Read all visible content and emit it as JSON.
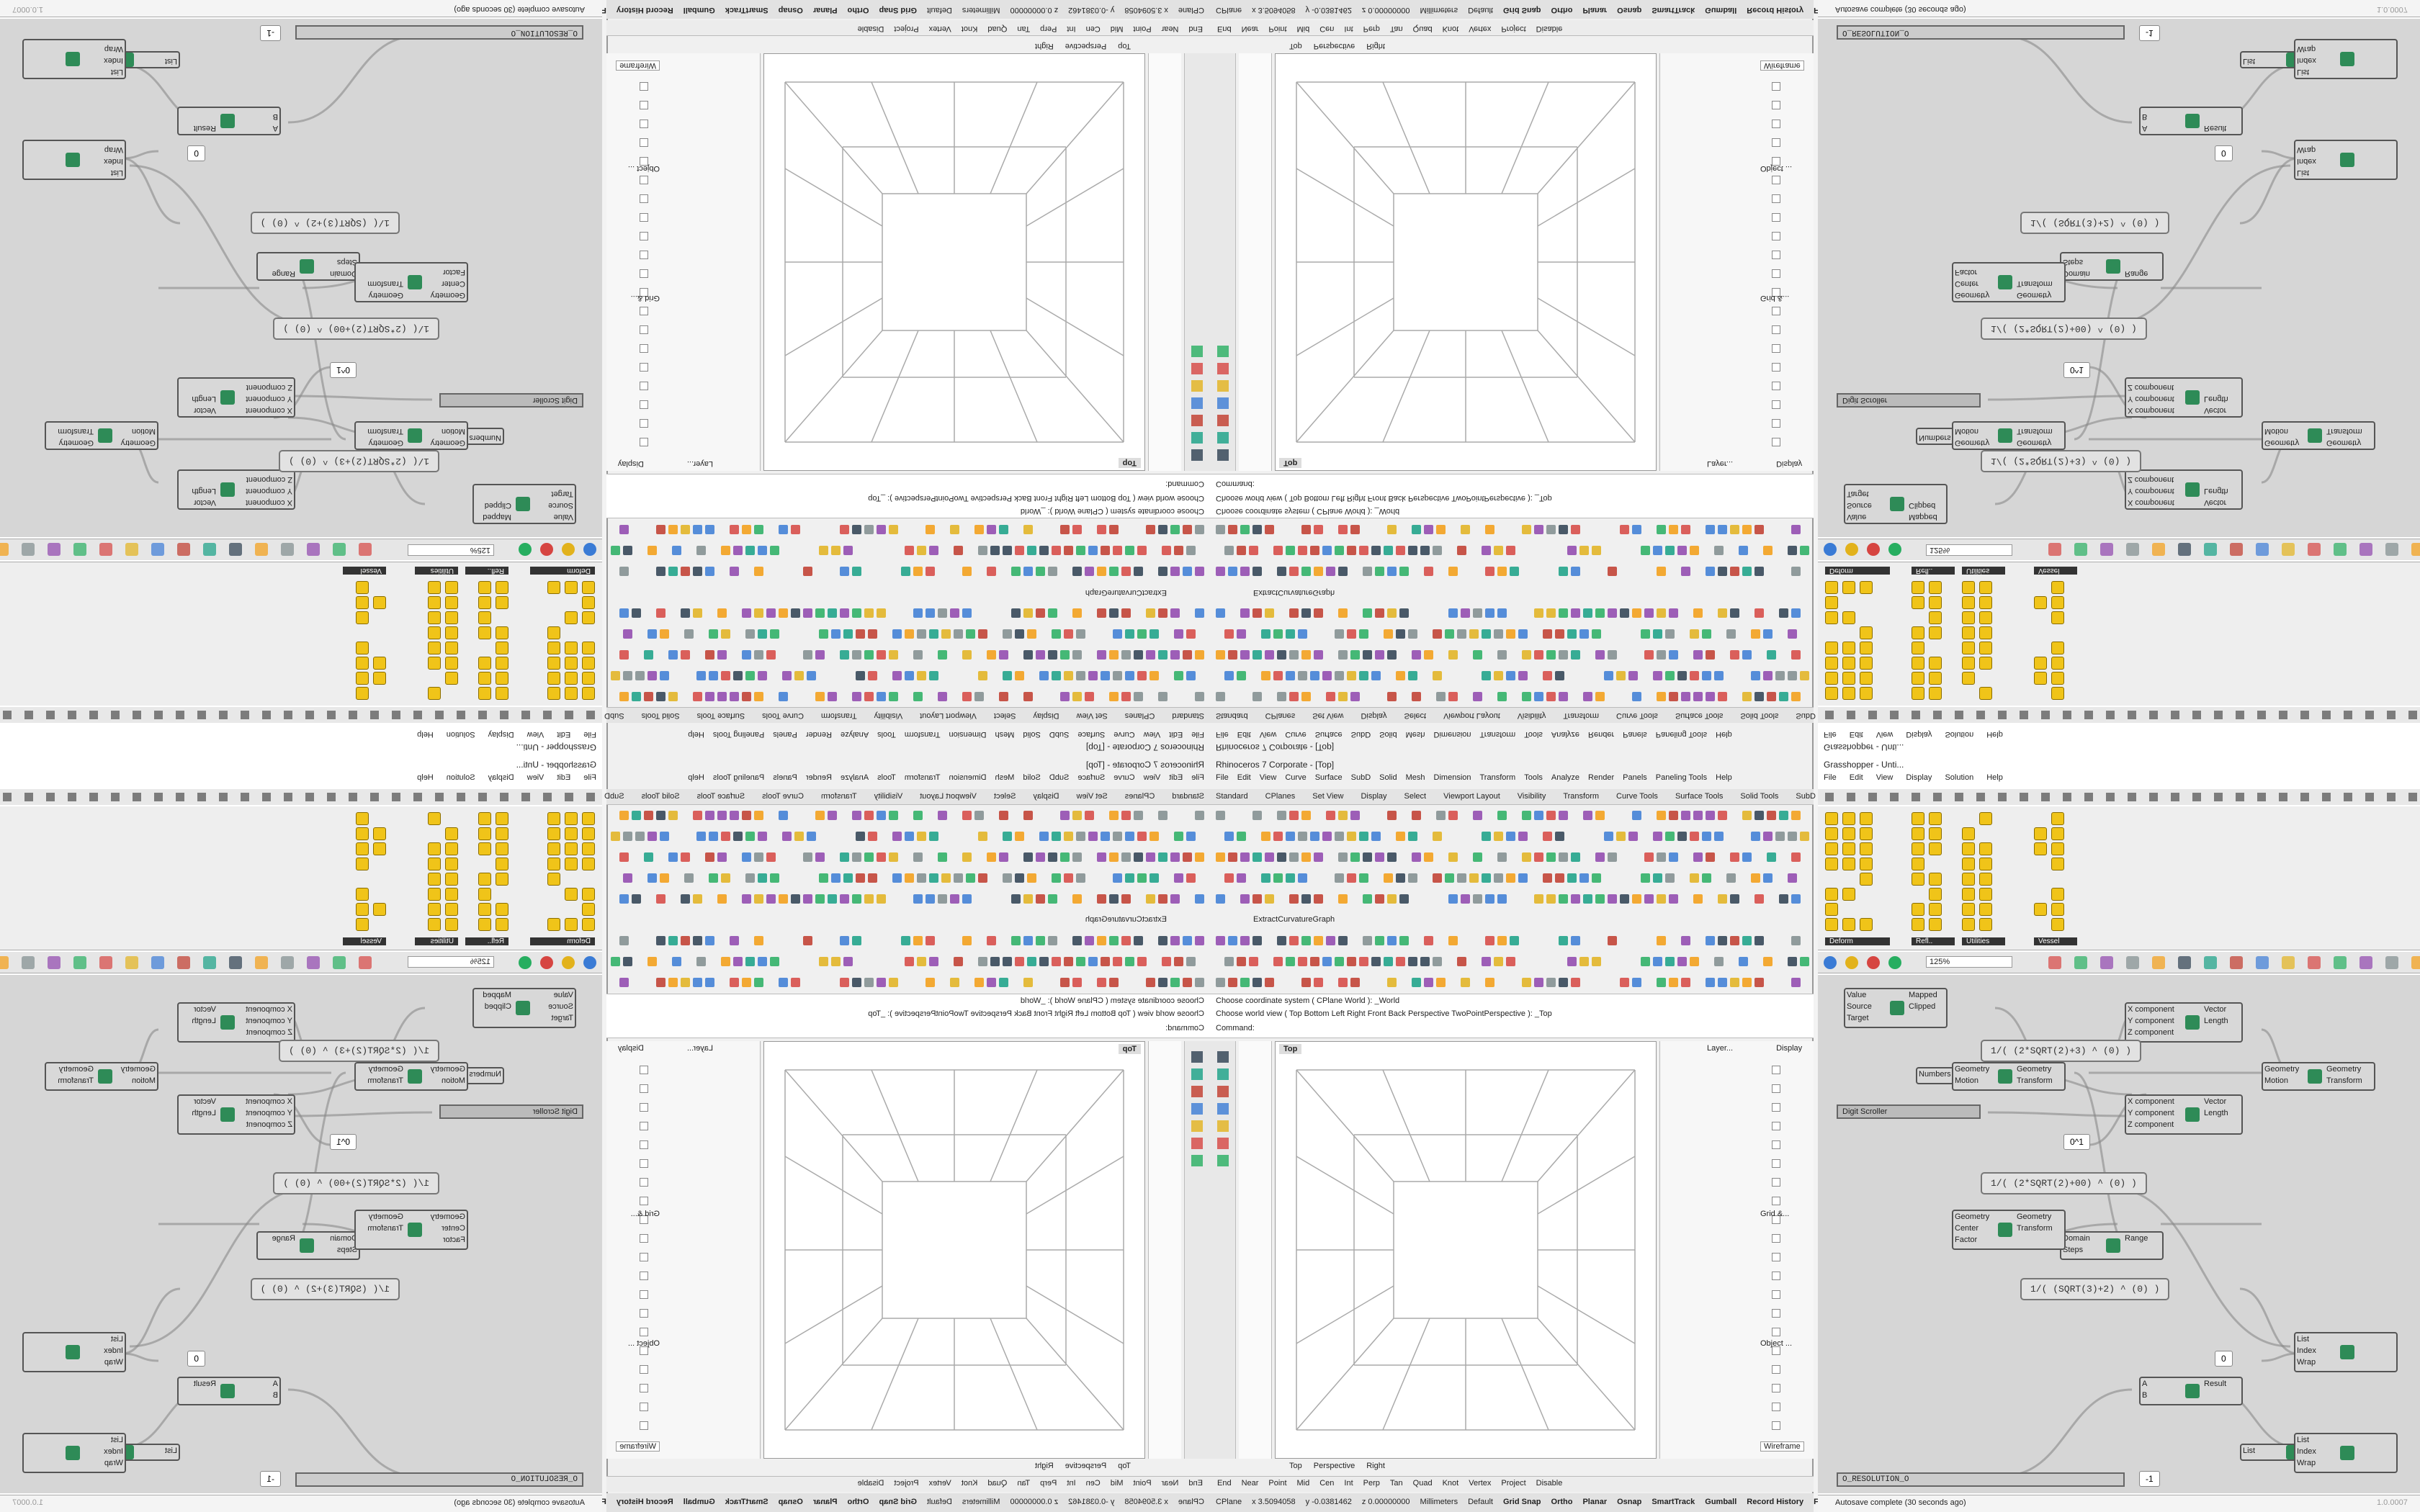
{
  "rhino": {
    "title": "Rhinoceros 7 Corporate - [Top]",
    "menu": [
      "File",
      "Edit",
      "View",
      "Curve",
      "Surface",
      "SubD",
      "Solid",
      "Mesh",
      "Dimension",
      "Transform",
      "Tools",
      "Analyze",
      "Render",
      "Panels",
      "Paneling Tools",
      "Help"
    ],
    "tabs": [
      "Standard",
      "CPlanes",
      "Set View",
      "Display",
      "Select",
      "Viewport Layout",
      "Visibility",
      "Transform",
      "Curve Tools",
      "Surface Tools",
      "Solid Tools",
      "SubD Too"
    ],
    "toolbar_label": "ExtractCurvatureGraph",
    "command_history": [
      "Choose coordinate system ( CPlane World ): _World",
      "Choose world view ( Top Bottom Left Right Front Back Perspective TwoPointPerspective ): _Top"
    ],
    "command_prompt": "Command:",
    "viewport_title": "Top",
    "viewport_tabs": [
      "Top",
      "Perspective",
      "Right"
    ],
    "panel_tabs": [
      "Layer...",
      "Display"
    ],
    "display_items": [
      "Grid &...",
      "Object ..."
    ],
    "display_mode": "Wireframe",
    "osnaps": [
      "End",
      "Near",
      "Point",
      "Mid",
      "Cen",
      "Int",
      "Perp",
      "Tan",
      "Quad",
      "Knot",
      "Vertex",
      "Project",
      "Disable"
    ],
    "status": {
      "cplane": "CPlane",
      "x": "x 3.5094058",
      "y": "y -0.0381462",
      "z": "z 0.00000000",
      "units": "Millimeters",
      "layer": "Default",
      "toggles": [
        "Grid Snap",
        "Ortho",
        "Planar",
        "Osnap",
        "SmartTrack",
        "Gumball",
        "Record History",
        "Filter"
      ]
    }
  },
  "grasshopper": {
    "title": "Grasshopper - Unti...",
    "menu": [
      "File",
      "Edit",
      "View",
      "Display",
      "Solution",
      "Help"
    ],
    "palette_groups": [
      "Deform",
      "Refl..",
      "Utilities",
      "Vessel"
    ],
    "zoom": "125%",
    "components": [
      {
        "inputs": [
          "Value",
          "Source",
          "Target"
        ],
        "outputs": [
          "Mapped",
          "Clipped"
        ]
      },
      {
        "inputs": [
          "X component",
          "Y component",
          "Z component"
        ],
        "outputs": [
          "Vector",
          "Length"
        ]
      },
      {
        "inputs": [
          "Numbers"
        ],
        "outputs": [
          "Domain"
        ]
      },
      {
        "inputs": [
          "Geometry",
          "Motion"
        ],
        "outputs": [
          "Geometry",
          "Transform"
        ]
      },
      {
        "inputs": [
          "X component",
          "Y component",
          "Z component"
        ],
        "outputs": [
          "Vector",
          "Length"
        ]
      },
      {
        "inputs": [
          "Geometry",
          "Motion"
        ],
        "outputs": [
          "Geometry",
          "Transform"
        ]
      },
      {
        "inputs": [
          "Domain",
          "Steps"
        ],
        "outputs": [
          "Range"
        ]
      },
      {
        "inputs": [
          "Geometry",
          "Center",
          "Factor"
        ],
        "outputs": [
          "Geometry",
          "Transform"
        ]
      },
      {
        "inputs": [
          "List",
          "Index",
          "Wrap"
        ],
        "outputs": []
      },
      {
        "inputs": [
          "A",
          "B"
        ],
        "outputs": [
          "Result"
        ]
      },
      {
        "inputs": [
          "List"
        ],
        "outputs": [
          "Length"
        ]
      },
      {
        "inputs": [
          "List",
          "Index",
          "Wrap"
        ],
        "outputs": []
      }
    ],
    "expressions": [
      "1/( (2*SQRT(2)+3) ^ (0) )",
      "1/( (2*SQRT(2)+00) ^ (0) )",
      "1/( (SQRT(3)+2) ^ (0) )"
    ],
    "panels": [
      "0^1",
      "0",
      "-1"
    ],
    "digit_scroller": "Digit Scroller",
    "slider": "O_RESOLUTION_O",
    "status": "Autosave complete (30 seconds ago)",
    "version": "1.0.0007"
  }
}
